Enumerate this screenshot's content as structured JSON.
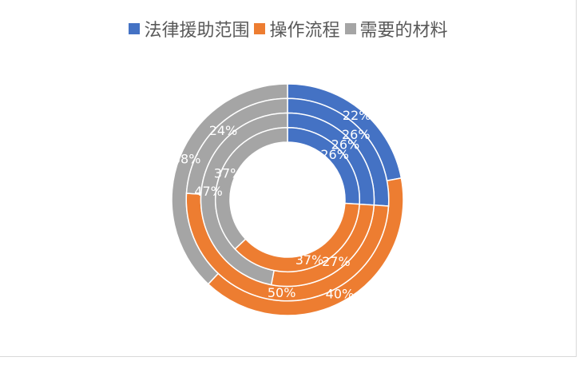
{
  "chart_data": {
    "type": "pie",
    "subtype": "multi-ring-donut",
    "title": "",
    "legend_position": "top",
    "categories": [
      "法律援助范围",
      "操作流程",
      "需要的材料"
    ],
    "colors": [
      "#4472C4",
      "#ED7D31",
      "#A5A5A5"
    ],
    "series": [
      {
        "values": [
          22,
          40,
          38
        ]
      },
      {
        "values": [
          26,
          50,
          24
        ]
      },
      {
        "values": [
          26,
          27,
          47
        ]
      },
      {
        "values": [
          26,
          37,
          37
        ]
      }
    ],
    "labels": [
      [
        "22%",
        "40%",
        "38%"
      ],
      [
        "26%",
        "50%",
        "24%"
      ],
      [
        "26%",
        "27%",
        "47%"
      ],
      [
        "26%",
        "37%",
        "37%"
      ]
    ]
  }
}
